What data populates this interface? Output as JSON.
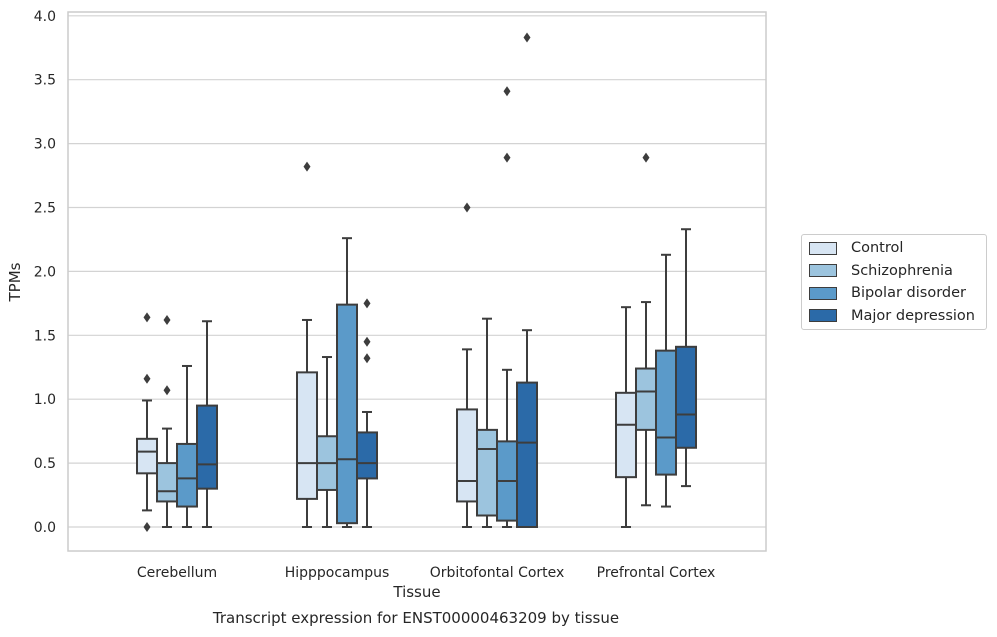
{
  "caption": "Transcript expression for ENST00000463209 by tissue",
  "chart_data": {
    "type": "box",
    "title": "",
    "xlabel": "Tissue",
    "ylabel": "TPMs",
    "ylim": [
      -0.18,
      4.03
    ],
    "yticks": [
      0.0,
      0.5,
      1.0,
      1.5,
      2.0,
      2.5,
      3.0,
      3.5,
      4.0
    ],
    "ytick_labels": [
      "0.0",
      "0.5",
      "1.0",
      "1.5",
      "2.0",
      "2.5",
      "3.0",
      "3.5",
      "4.0"
    ],
    "grid": "horizontal",
    "legend_position": "right",
    "categories": [
      "Cerebellum",
      "Hipppocampus",
      "Orbitofontal Cortex",
      "Prefrontal Cortex"
    ],
    "series": [
      {
        "name": "Control",
        "color": "#d7e5f3",
        "boxes": [
          {
            "whisker_low": 0.13,
            "q1": 0.42,
            "median": 0.59,
            "q3": 0.69,
            "whisker_high": 0.99,
            "outliers": [
              0.0,
              1.16,
              1.64
            ]
          },
          {
            "whisker_low": 0.0,
            "q1": 0.22,
            "median": 0.5,
            "q3": 1.21,
            "whisker_high": 1.62,
            "outliers": [
              2.82
            ]
          },
          {
            "whisker_low": 0.0,
            "q1": 0.2,
            "median": 0.36,
            "q3": 0.92,
            "whisker_high": 1.39,
            "outliers": [
              2.5
            ]
          },
          {
            "whisker_low": 0.0,
            "q1": 0.39,
            "median": 0.8,
            "q3": 1.05,
            "whisker_high": 1.72,
            "outliers": []
          }
        ]
      },
      {
        "name": "Schizophrenia",
        "color": "#9cc4de",
        "boxes": [
          {
            "whisker_low": 0.0,
            "q1": 0.2,
            "median": 0.28,
            "q3": 0.5,
            "whisker_high": 0.77,
            "outliers": [
              1.07,
              1.62
            ]
          },
          {
            "whisker_low": 0.0,
            "q1": 0.29,
            "median": 0.5,
            "q3": 0.71,
            "whisker_high": 1.33,
            "outliers": []
          },
          {
            "whisker_low": 0.0,
            "q1": 0.09,
            "median": 0.61,
            "q3": 0.76,
            "whisker_high": 1.63,
            "outliers": []
          },
          {
            "whisker_low": 0.17,
            "q1": 0.76,
            "median": 1.06,
            "q3": 1.24,
            "whisker_high": 1.76,
            "outliers": [
              2.89
            ]
          }
        ]
      },
      {
        "name": "Bipolar disorder",
        "color": "#5b9ac9",
        "boxes": [
          {
            "whisker_low": 0.0,
            "q1": 0.16,
            "median": 0.38,
            "q3": 0.65,
            "whisker_high": 1.26,
            "outliers": []
          },
          {
            "whisker_low": 0.0,
            "q1": 0.03,
            "median": 0.53,
            "q3": 1.74,
            "whisker_high": 2.26,
            "outliers": []
          },
          {
            "whisker_low": 0.0,
            "q1": 0.05,
            "median": 0.36,
            "q3": 0.67,
            "whisker_high": 1.23,
            "outliers": [
              2.89,
              3.41
            ]
          },
          {
            "whisker_low": 0.16,
            "q1": 0.41,
            "median": 0.7,
            "q3": 1.38,
            "whisker_high": 2.13,
            "outliers": []
          }
        ]
      },
      {
        "name": "Major depression",
        "color": "#2b6aa8",
        "boxes": [
          {
            "whisker_low": 0.0,
            "q1": 0.3,
            "median": 0.49,
            "q3": 0.95,
            "whisker_high": 1.61,
            "outliers": []
          },
          {
            "whisker_low": 0.0,
            "q1": 0.38,
            "median": 0.5,
            "q3": 0.74,
            "whisker_high": 0.9,
            "outliers": [
              1.32,
              1.45,
              1.75
            ]
          },
          {
            "whisker_low": 0.0,
            "q1": 0.0,
            "median": 0.66,
            "q3": 1.13,
            "whisker_high": 1.54,
            "outliers": [
              3.83
            ]
          },
          {
            "whisker_low": 0.32,
            "q1": 0.62,
            "median": 0.88,
            "q3": 1.41,
            "whisker_high": 2.33,
            "outliers": []
          }
        ]
      }
    ]
  }
}
